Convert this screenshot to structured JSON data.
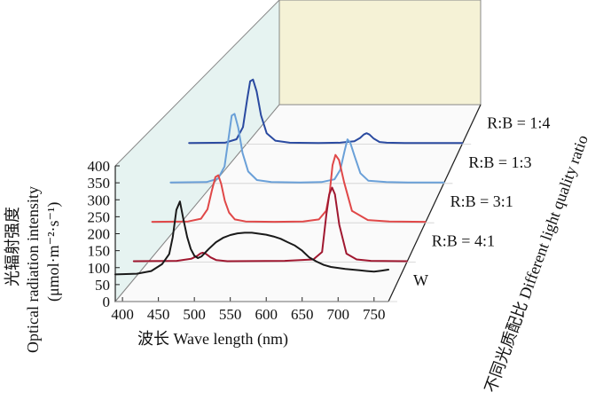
{
  "chart_data": {
    "type": "line",
    "style": "3d-waterfall",
    "ylabel_cn": "光辐射强度",
    "ylabel_en": "Optical radiation intensity",
    "yunit": "(μmol·m⁻²·s⁻¹)",
    "xlabel": "波长 Wave length (nm)",
    "zlabel": "不同光质配比 Different light quality ratio",
    "ylim": [
      0,
      400
    ],
    "xlim": [
      390,
      770
    ],
    "yticks": [
      "0",
      "50",
      "100",
      "150",
      "200",
      "250",
      "300",
      "350",
      "400"
    ],
    "xticks": [
      "400",
      "450",
      "500",
      "550",
      "600",
      "650",
      "700",
      "750"
    ],
    "series": [
      {
        "name": "W",
        "color": "#1a1a1a",
        "x": [
          390,
          420,
          440,
          455,
          465,
          470,
          475,
          480,
          485,
          490,
          495,
          500,
          505,
          510,
          520,
          530,
          540,
          550,
          560,
          570,
          580,
          590,
          600,
          610,
          620,
          630,
          640,
          650,
          660,
          670,
          680,
          690,
          700,
          710,
          720,
          730,
          740,
          750,
          760,
          770
        ],
        "y": [
          80,
          82,
          90,
          110,
          140,
          190,
          270,
          295,
          240,
          190,
          155,
          135,
          128,
          133,
          155,
          175,
          188,
          196,
          201,
          203,
          203,
          200,
          197,
          192,
          185,
          175,
          165,
          150,
          130,
          118,
          108,
          102,
          99,
          96,
          94,
          92,
          90,
          88,
          91,
          94
        ]
      },
      {
        "name": "R:B = 4:1",
        "color": "#a01830",
        "x": [
          390,
          450,
          470,
          478,
          483,
          486,
          490,
          497,
          505,
          520,
          600,
          640,
          652,
          658,
          662,
          666,
          670,
          676,
          686,
          700,
          720,
          770
        ],
        "y": [
          3,
          4,
          10,
          18,
          26,
          28,
          25,
          14,
          6,
          3,
          4,
          8,
          30,
          140,
          200,
          220,
          200,
          110,
          25,
          8,
          4,
          3
        ]
      },
      {
        "name": "R:B = 3:1",
        "color": "#e04848",
        "x": [
          390,
          440,
          458,
          467,
          473,
          478,
          482,
          486,
          491,
          497,
          505,
          520,
          560,
          600,
          622,
          632,
          637,
          641,
          645,
          650,
          657,
          668,
          690,
          720,
          770
        ],
        "y": [
          3,
          4,
          12,
          40,
          95,
          135,
          140,
          115,
          65,
          30,
          10,
          4,
          3,
          4,
          10,
          35,
          90,
          170,
          200,
          185,
          120,
          35,
          8,
          4,
          3
        ]
      },
      {
        "name": "R:B = 1:3",
        "color": "#6aa0d8",
        "x": [
          390,
          440,
          456,
          465,
          471,
          475,
          479,
          484,
          490,
          498,
          510,
          530,
          570,
          600,
          618,
          626,
          632,
          636,
          640,
          646,
          654,
          665,
          690,
          720,
          770
        ],
        "y": [
          3,
          4,
          14,
          50,
          140,
          200,
          205,
          165,
          90,
          35,
          10,
          4,
          3,
          4,
          12,
          40,
          95,
          130,
          120,
          80,
          30,
          8,
          4,
          3,
          3
        ]
      },
      {
        "name": "R:B = 1:4",
        "color": "#2a4aa0",
        "x": [
          390,
          440,
          456,
          465,
          471,
          475,
          479,
          484,
          490,
          498,
          510,
          530,
          570,
          600,
          620,
          628,
          633,
          637,
          641,
          647,
          655,
          665,
          690,
          720,
          770
        ],
        "y": [
          3,
          4,
          14,
          50,
          135,
          185,
          190,
          155,
          85,
          32,
          10,
          4,
          3,
          4,
          8,
          18,
          28,
          32,
          28,
          16,
          6,
          4,
          3,
          3,
          3
        ]
      }
    ]
  }
}
